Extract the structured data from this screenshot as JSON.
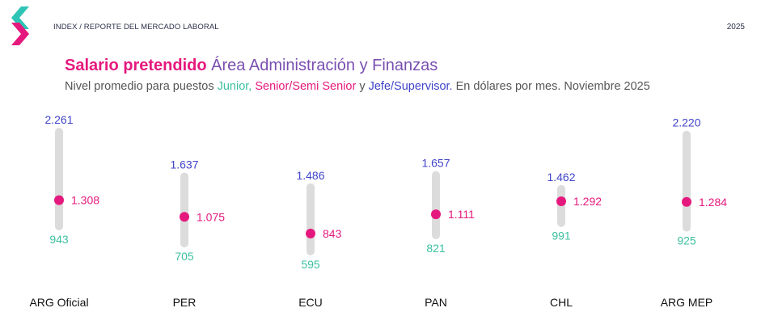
{
  "header": {
    "breadcrumb": "INDEX / REPORTE DEL MERCADO LABORAL",
    "year": "2025"
  },
  "title": {
    "strong": "Salario pretendido",
    "rest": "Área Administración y Finanzas"
  },
  "subtitle": {
    "prefix": "Nivel promedio para puestos ",
    "junior": "Junior,",
    "senior": "Senior/Semi Senior",
    "and": " y ",
    "jefe": "Jefe/Supervisor.",
    "suffix": " En dólares por mes. Noviembre 2025"
  },
  "colors": {
    "junior": "#3cc0a0",
    "senior": "#e5197d",
    "jefe": "#4044c8",
    "track": "#dcdcdc",
    "title_accent": "#7a4fb0"
  },
  "chart_data": {
    "type": "range-dot",
    "categories": [
      "ARG Oficial",
      "PER",
      "ECU",
      "PAN",
      "CHL",
      "ARG MEP"
    ],
    "series": [
      {
        "name": "Junior",
        "values": [
          943,
          705,
          595,
          821,
          991,
          925
        ],
        "labels": [
          "943",
          "705",
          "595",
          "821",
          "991",
          "925"
        ]
      },
      {
        "name": "Senior/Semi Senior",
        "values": [
          1308,
          1075,
          843,
          1111,
          1292,
          1284
        ],
        "labels": [
          "1.308",
          "1.075",
          "843",
          "1.111",
          "1.292",
          "1.284"
        ]
      },
      {
        "name": "Jefe/Supervisor",
        "values": [
          2261,
          1637,
          1486,
          1657,
          1462,
          2220
        ],
        "labels": [
          "2.261",
          "1.637",
          "1.486",
          "1.657",
          "1.462",
          "2.220"
        ]
      }
    ],
    "unit": "USD por mes",
    "grid": false,
    "legend": "in subtitle"
  }
}
